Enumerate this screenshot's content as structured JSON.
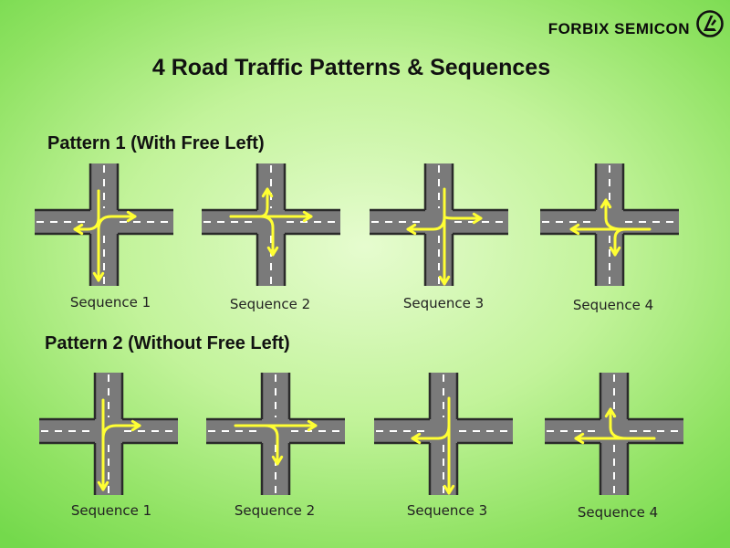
{
  "brand": {
    "name": "FORBIX SEMICON",
    "logo_icon": "forbix-logo-icon"
  },
  "title": "4 Road Traffic Patterns & Sequences",
  "colors": {
    "road": "#7a7a7a",
    "road_edge": "#2a2a2a",
    "lane_mark": "#ffffff",
    "arrow": "#ffff33"
  },
  "patterns": [
    {
      "title": "Pattern 1 (With Free Left)",
      "sequences": [
        {
          "label": "Sequence 1",
          "arrows": [
            "N-S",
            "N-E",
            "N-W"
          ]
        },
        {
          "label": "Sequence 2",
          "arrows": [
            "W-N",
            "W-E",
            "W-S"
          ]
        },
        {
          "label": "Sequence 3",
          "arrows": [
            "S-N",
            "S-E",
            "S-W"
          ]
        },
        {
          "label": "Sequence 4",
          "arrows": [
            "E-W",
            "E-N",
            "E-S"
          ]
        }
      ]
    },
    {
      "title": "Pattern 2 (Without Free Left)",
      "sequences": [
        {
          "label": "Sequence 1",
          "arrows": [
            "N-S",
            "N-E"
          ]
        },
        {
          "label": "Sequence 2",
          "arrows": [
            "W-E",
            "W-S"
          ]
        },
        {
          "label": "Sequence 3",
          "arrows": [
            "S-N",
            "S-W"
          ]
        },
        {
          "label": "Sequence 4",
          "arrows": [
            "E-W",
            "E-N"
          ]
        }
      ]
    }
  ]
}
